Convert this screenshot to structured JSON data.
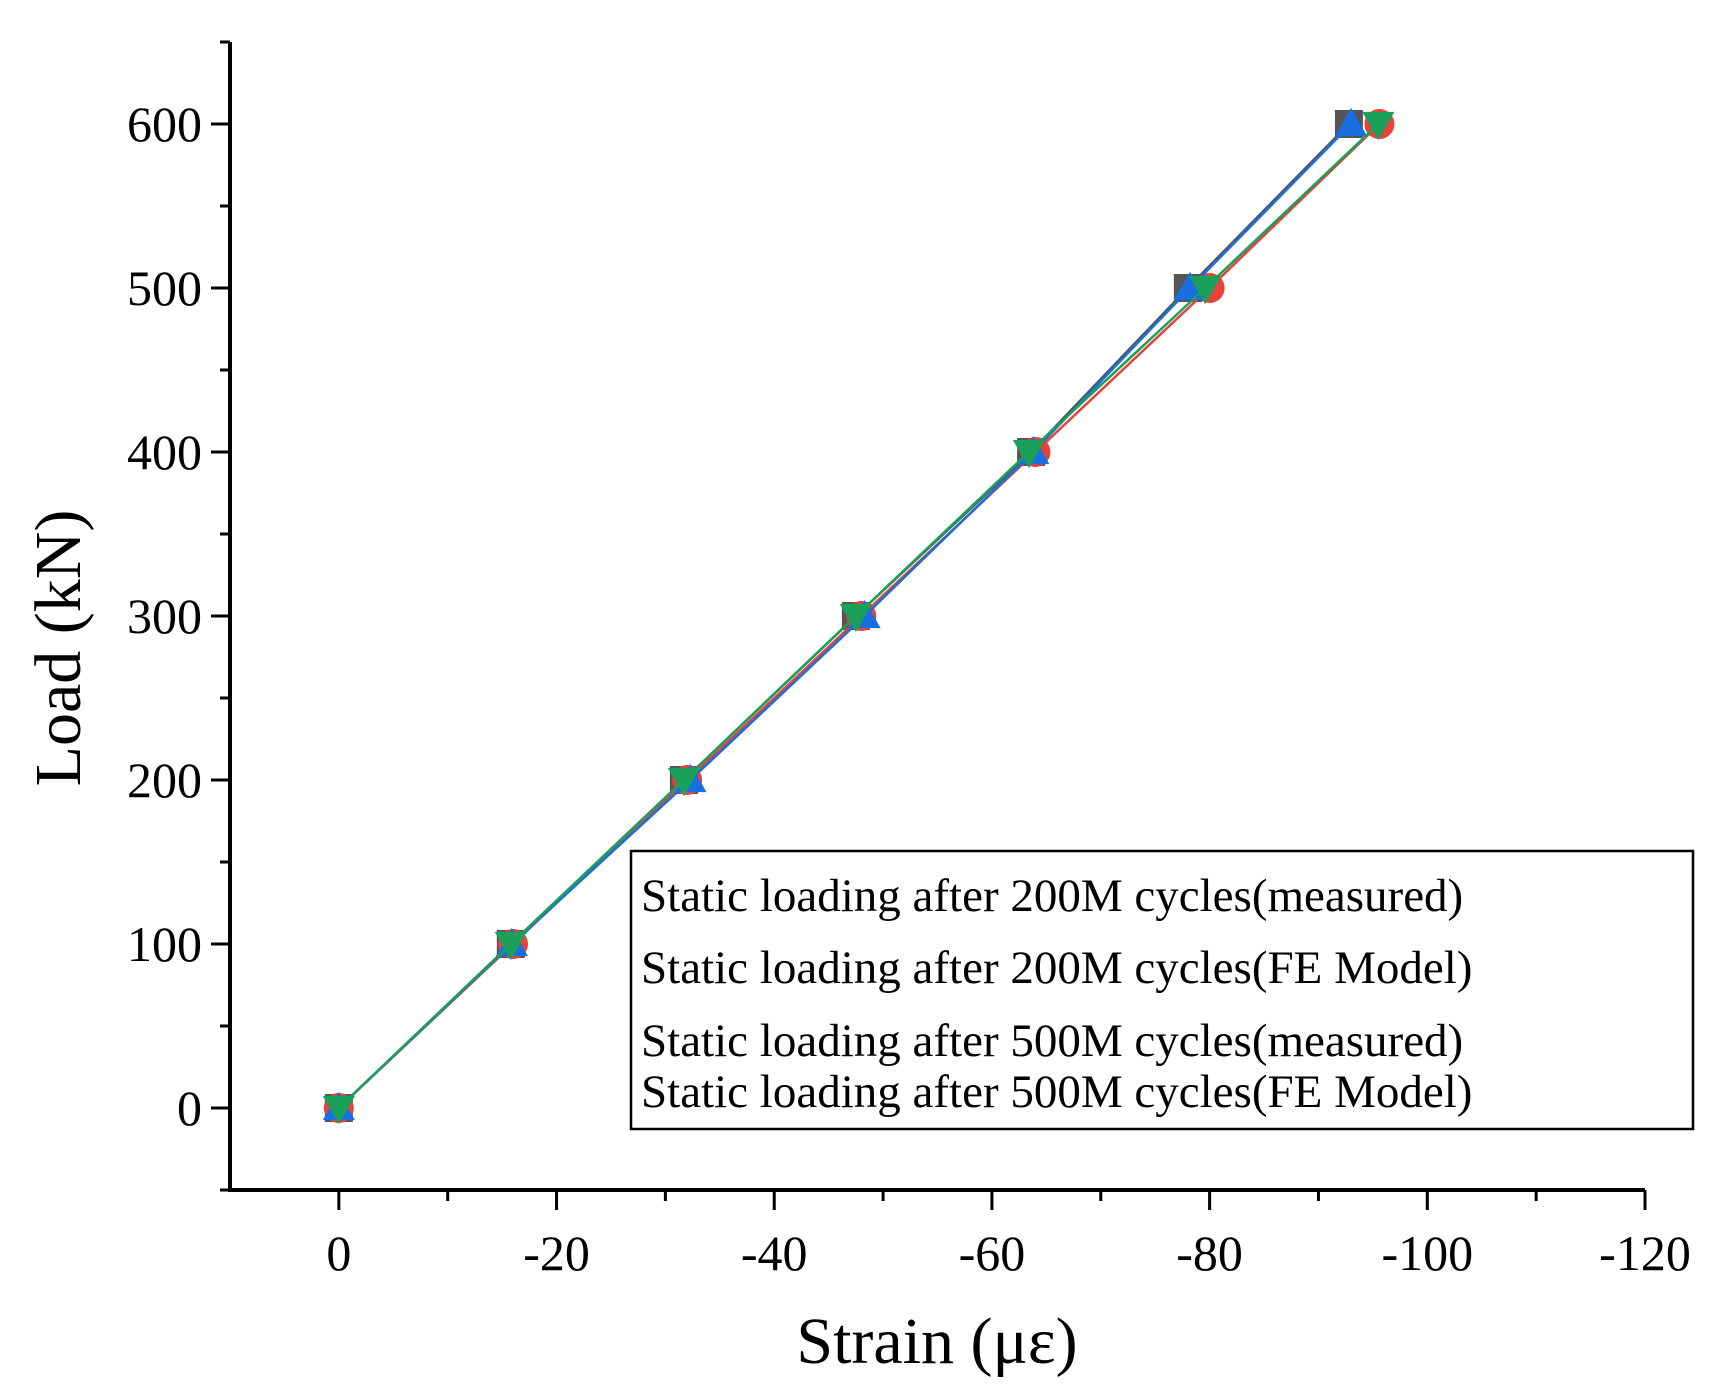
{
  "chart_data": {
    "type": "line",
    "xlabel": "Strain (με)",
    "ylabel": "Load (kN)",
    "xlim": [
      10,
      -120
    ],
    "ylim": [
      -50,
      650
    ],
    "x_ticks": [
      0,
      -20,
      -40,
      -60,
      -80,
      -100,
      -120
    ],
    "x_tick_labels": [
      "0",
      "-20",
      "-40",
      "-60",
      "-80",
      "-100",
      "-120"
    ],
    "y_ticks": [
      0,
      100,
      200,
      300,
      400,
      500,
      600
    ],
    "y_tick_labels": [
      "0",
      "100",
      "200",
      "300",
      "400",
      "500",
      "600"
    ],
    "grid": false,
    "legend_position": "bottom-right",
    "series": [
      {
        "name": "Static loading after 200M cycles(measured)",
        "color": "#555555",
        "marker": "square",
        "x": [
          0,
          -15.8,
          -31.7,
          -47.5,
          -63.6,
          -78,
          -92.8
        ],
        "y": [
          0,
          100,
          200,
          300,
          400,
          500,
          600
        ]
      },
      {
        "name": "Static loading after 200M cycles(FE Model)",
        "color": "#e8413a",
        "marker": "circle",
        "x": [
          0,
          -16,
          -32,
          -48,
          -64,
          -80,
          -95.6
        ],
        "y": [
          0,
          100,
          200,
          300,
          400,
          500,
          600
        ]
      },
      {
        "name": "Static loading after 500M cycles(measured)",
        "color": "#1a6fe0",
        "marker": "triangle-up",
        "x": [
          0,
          -15.9,
          -32.3,
          -48.3,
          -63.8,
          -78.2,
          -93
        ],
        "y": [
          0,
          100,
          200,
          300,
          400,
          500,
          600
        ]
      },
      {
        "name": "Static loading after 500M cycles(FE Model)",
        "color": "#1aa05a",
        "marker": "triangle-down",
        "x": [
          0,
          -15.8,
          -31.7,
          -47.5,
          -63.4,
          -79.6,
          -95.5
        ],
        "y": [
          0,
          100,
          200,
          300,
          400,
          500,
          600
        ]
      }
    ]
  }
}
